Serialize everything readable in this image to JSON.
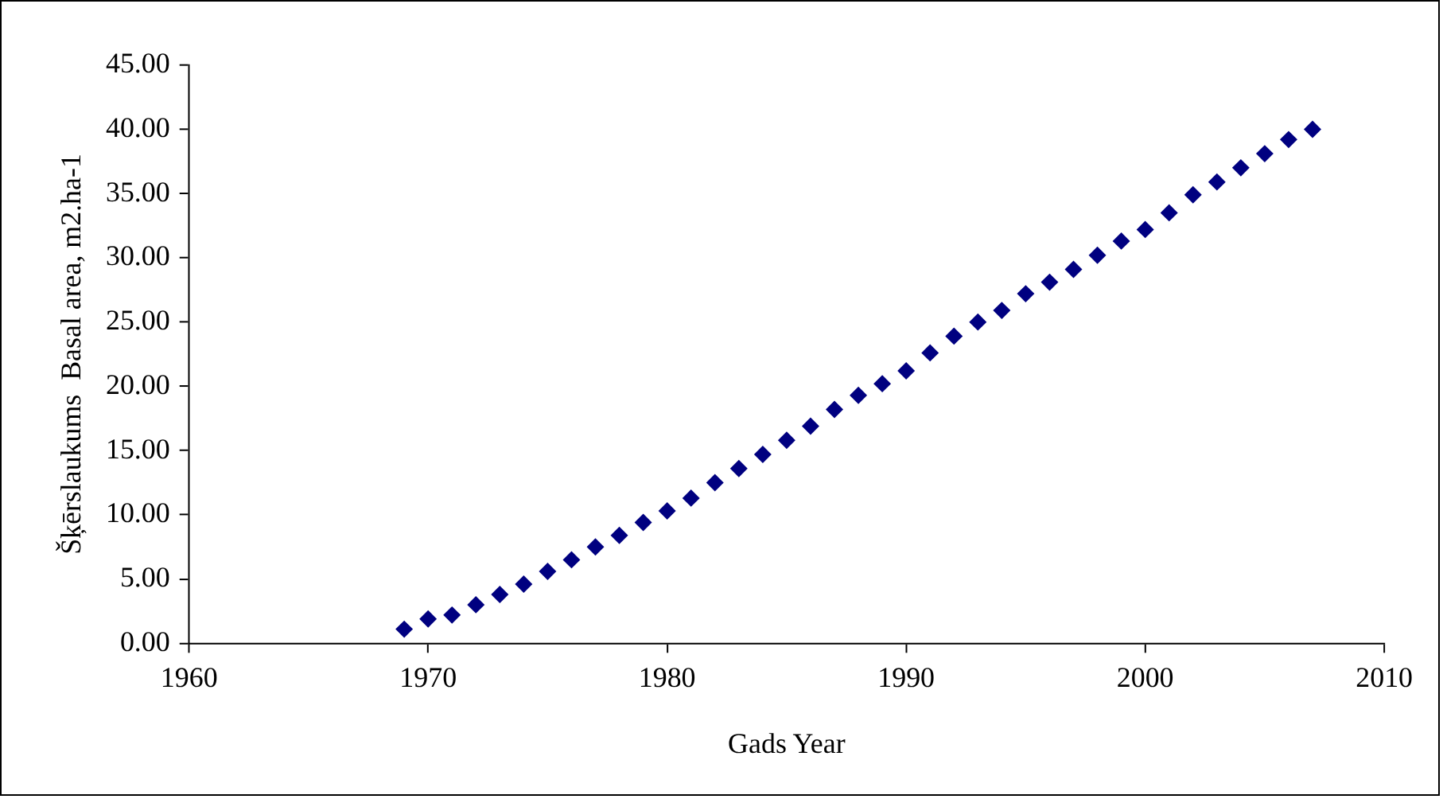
{
  "chart_data": {
    "type": "scatter",
    "xlabel": "Gads Year",
    "ylabel": "Šķērslaukums  Basal area, m2.ha-1",
    "x": [
      1969,
      1970,
      1971,
      1972,
      1973,
      1974,
      1975,
      1976,
      1977,
      1978,
      1979,
      1980,
      1981,
      1982,
      1983,
      1984,
      1985,
      1986,
      1987,
      1988,
      1989,
      1990,
      1991,
      1992,
      1993,
      1994,
      1995,
      1996,
      1997,
      1998,
      1999,
      2000,
      2001,
      2002,
      2003,
      2004,
      2005,
      2006,
      2007
    ],
    "series": [
      {
        "color": "#000080",
        "values": [
          1.1,
          1.9,
          2.2,
          3.0,
          3.8,
          4.6,
          5.6,
          6.5,
          7.5,
          8.4,
          9.4,
          10.3,
          11.3,
          12.5,
          13.6,
          14.7,
          15.8,
          16.9,
          18.2,
          19.3,
          20.2,
          21.2,
          22.6,
          23.9,
          25.0,
          25.9,
          27.2,
          28.1,
          29.1,
          30.2,
          31.3,
          32.2,
          33.5,
          34.9,
          35.9,
          37.0,
          38.1,
          39.2,
          40.0
        ]
      }
    ],
    "xlim": [
      1960,
      2010
    ],
    "xticks": [
      1960,
      1970,
      1980,
      1990,
      2000,
      2010
    ],
    "ylim": [
      0,
      45
    ],
    "yticks": [
      {
        "value": 0,
        "label": "0.00"
      },
      {
        "value": 5,
        "label": "5.00"
      },
      {
        "value": 10,
        "label": "10.00"
      },
      {
        "value": 15,
        "label": "15.00"
      },
      {
        "value": 20,
        "label": "20.00"
      },
      {
        "value": 25,
        "label": "25.00"
      },
      {
        "value": 30,
        "label": "30.00"
      },
      {
        "value": 35,
        "label": "35.00"
      },
      {
        "value": 40,
        "label": "40.00"
      },
      {
        "value": 45,
        "label": "45.00"
      }
    ],
    "grid": false,
    "legend": false,
    "marker": "diamond"
  }
}
